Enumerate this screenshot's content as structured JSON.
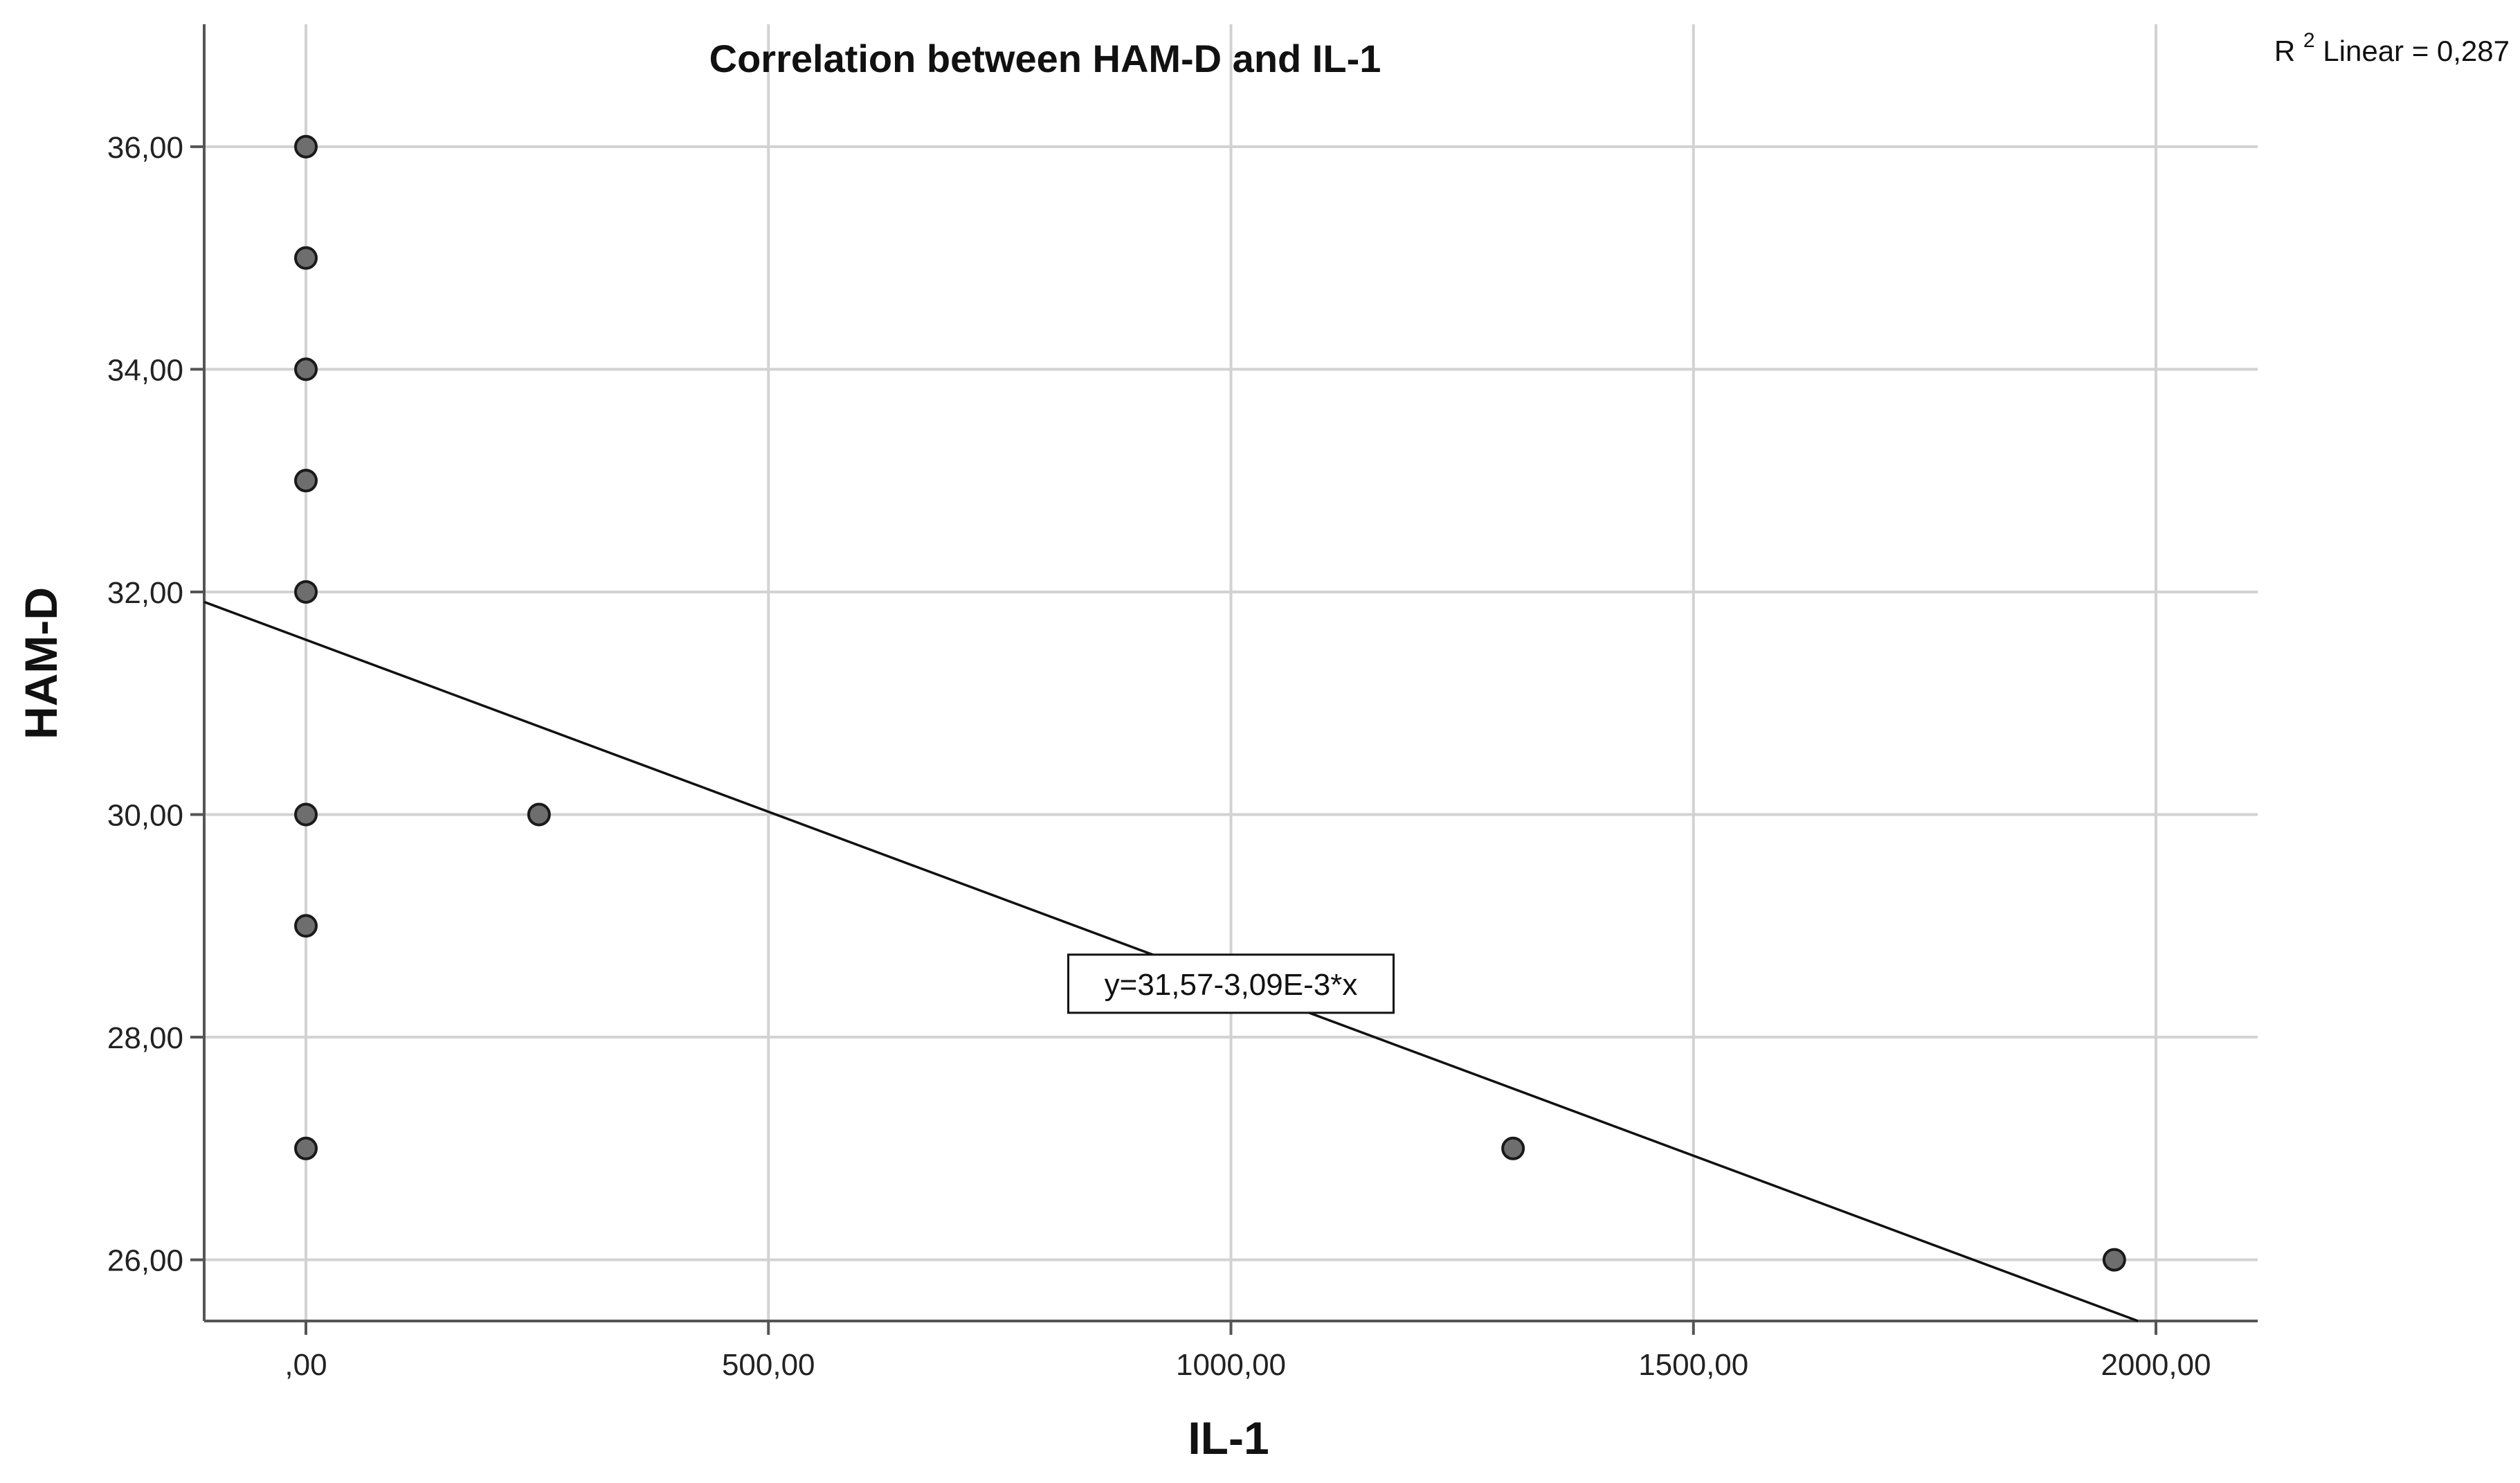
{
  "chart_data": {
    "type": "scatter",
    "title": "Correlation between HAM-D and IL-1",
    "xlabel": "IL-1",
    "ylabel": "HAM-D",
    "xlim": [
      -110,
      2110
    ],
    "ylim": [
      25.45,
      37.1
    ],
    "x_ticks": [
      0,
      500,
      1000,
      1500,
      2000
    ],
    "x_tick_labels": [
      ",00",
      "500,00",
      "1000,00",
      "1500,00",
      "2000,00"
    ],
    "y_ticks": [
      26,
      28,
      30,
      32,
      34,
      36
    ],
    "y_tick_labels": [
      "26,00",
      "28,00",
      "30,00",
      "32,00",
      "34,00",
      "36,00"
    ],
    "grid": true,
    "points": [
      {
        "x": 0,
        "y": 36
      },
      {
        "x": 0,
        "y": 35
      },
      {
        "x": 0,
        "y": 34
      },
      {
        "x": 0,
        "y": 33
      },
      {
        "x": 0,
        "y": 32
      },
      {
        "x": 0,
        "y": 30
      },
      {
        "x": 0,
        "y": 29
      },
      {
        "x": 0,
        "y": 27
      },
      {
        "x": 252,
        "y": 30
      },
      {
        "x": 1305,
        "y": 27
      },
      {
        "x": 1955,
        "y": 26
      }
    ],
    "fit_line": {
      "intercept": 31.57,
      "slope": -0.00309,
      "equation_label": "y=31,57-3,09E-3*x",
      "label_at_x": 1000
    },
    "r2_label": {
      "main": "R",
      "sup": "2",
      "rest": " Linear = 0,287"
    }
  }
}
